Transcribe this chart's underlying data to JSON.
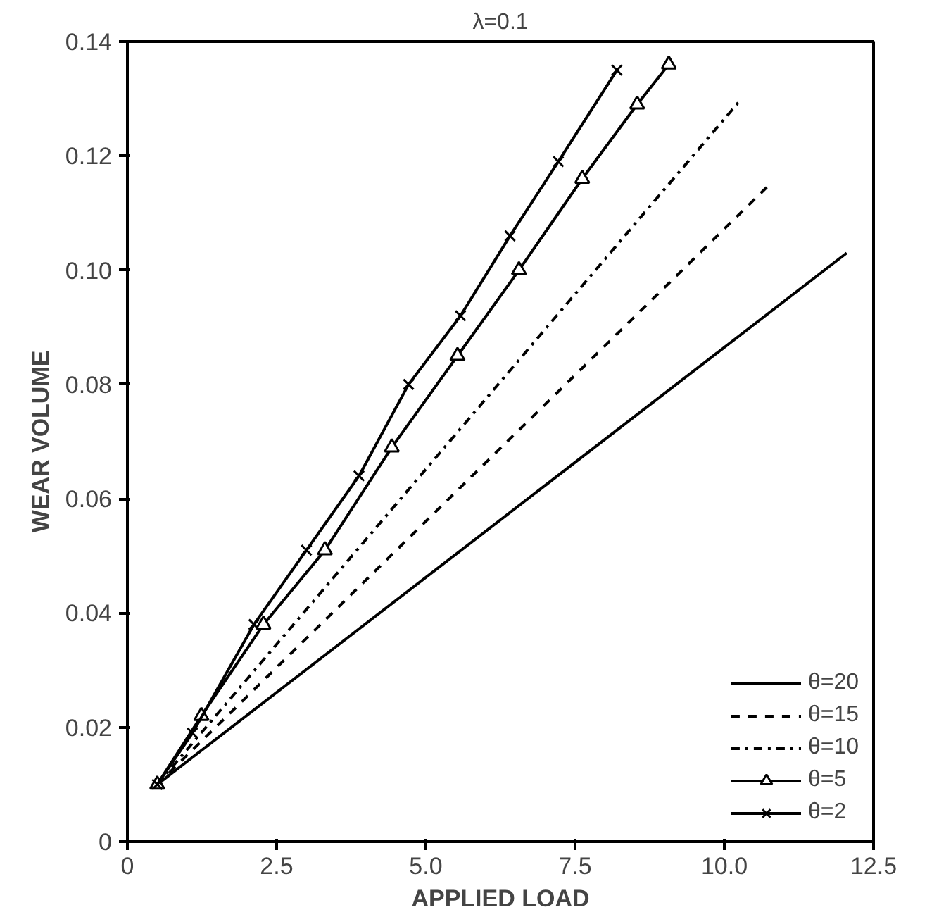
{
  "chart_data": {
    "type": "line",
    "title": "λ=0.1",
    "xlabel": "APPLIED LOAD",
    "ylabel": "WEAR VOLUME",
    "xlim": [
      0,
      12.5
    ],
    "ylim": [
      0,
      0.14
    ],
    "xticks": [
      0,
      2.5,
      {
        "value": 5,
        "label": "5.0"
      },
      7.5,
      {
        "value": 10,
        "label": "10.0"
      },
      12.5
    ],
    "yticks": [
      0,
      0.02,
      0.04,
      0.06,
      0.08,
      {
        "value": 0.1,
        "label": "0.10"
      },
      0.12,
      0.14
    ],
    "grid": false,
    "legend": "bottom right",
    "series": [
      {
        "name": "θ=20",
        "color": "#000000",
        "line_style": "solid",
        "x": [
          0.5,
          12.05
        ],
        "values": [
          0.01,
          0.103
        ]
      },
      {
        "name": "θ=15",
        "color": "#000000",
        "line_style": "dashed",
        "x": [
          0.5,
          10.76
        ],
        "values": [
          0.01,
          0.115
        ]
      },
      {
        "name": "θ=10",
        "color": "#000000",
        "line_style": "dashdot",
        "x": [
          0.5,
          10.29
        ],
        "values": [
          0.01,
          0.13
        ]
      },
      {
        "name": "θ=5",
        "color": "#000000",
        "line_style": "solid",
        "marker": "triangle",
        "x": [
          0.5,
          1.24,
          2.28,
          3.31,
          4.43,
          5.53,
          6.56,
          7.62,
          8.54,
          9.07
        ],
        "values": [
          0.01,
          0.022,
          0.038,
          0.051,
          0.069,
          0.085,
          0.1,
          0.116,
          0.129,
          0.136
        ]
      },
      {
        "name": "θ=2",
        "color": "#000000",
        "line_style": "solid",
        "marker": "cross",
        "x": [
          0.5,
          1.09,
          2.12,
          3.0,
          3.88,
          4.71,
          5.58,
          6.41,
          7.22,
          8.2
        ],
        "values": [
          0.01,
          0.019,
          0.038,
          0.051,
          0.064,
          0.08,
          0.092,
          0.106,
          0.119,
          0.135
        ]
      }
    ]
  }
}
